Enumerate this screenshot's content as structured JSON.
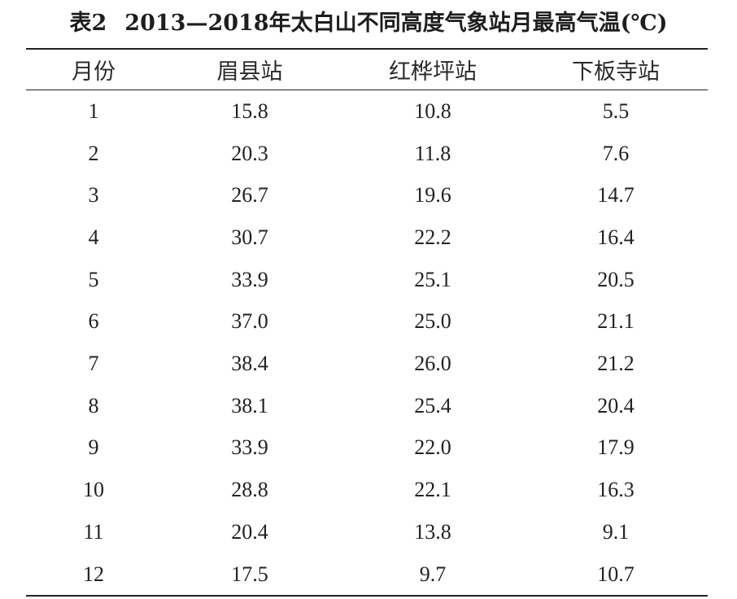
{
  "title": {
    "table_no": "表2",
    "text": "2013—2018年太白山不同高度气象站月最高气温(℃)"
  },
  "columns": [
    "月份",
    "眉县站",
    "红桦坪站",
    "下板寺站"
  ],
  "rows": [
    [
      "1",
      "15.8",
      "10.8",
      "5.5"
    ],
    [
      "2",
      "20.3",
      "11.8",
      "7.6"
    ],
    [
      "3",
      "26.7",
      "19.6",
      "14.7"
    ],
    [
      "4",
      "30.7",
      "22.2",
      "16.4"
    ],
    [
      "5",
      "33.9",
      "25.1",
      "20.5"
    ],
    [
      "6",
      "37.0",
      "25.0",
      "21.1"
    ],
    [
      "7",
      "38.4",
      "26.0",
      "21.2"
    ],
    [
      "8",
      "38.1",
      "25.4",
      "20.4"
    ],
    [
      "9",
      "33.9",
      "22.0",
      "17.9"
    ],
    [
      "10",
      "28.8",
      "22.1",
      "16.3"
    ],
    [
      "11",
      "20.4",
      "13.8",
      "9.1"
    ],
    [
      "12",
      "17.5",
      "9.7",
      "10.7"
    ]
  ]
}
